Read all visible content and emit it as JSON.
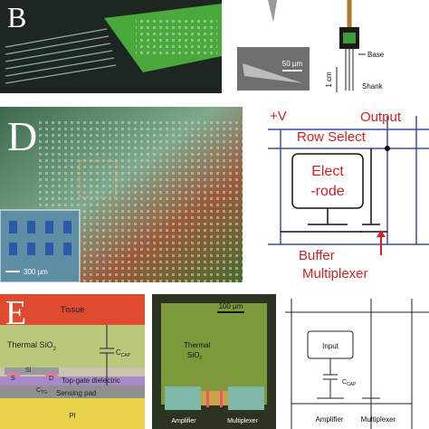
{
  "panel_b": {
    "label": "B"
  },
  "panel_c": {
    "scale_bar": "50 µm",
    "base": "Base",
    "length": "1 cm",
    "shank": "Shank"
  },
  "panel_d": {
    "label": "D",
    "inset_scale_bar": "300 µm"
  },
  "circuit_d": {
    "supply": "+V",
    "output": "Output",
    "row_select": "Row Select",
    "electrode": [
      "Elect",
      "-rode"
    ],
    "buffer": "Buffer",
    "multiplexer": "Multiplexer"
  },
  "panel_e": {
    "label": "E",
    "tissue": "Tissue",
    "oxide": [
      "Thermal SiO",
      "2"
    ],
    "cap": [
      "C",
      "CAP"
    ],
    "si": "Si",
    "source": "S",
    "drain": "D",
    "ctg": [
      "C",
      "TG"
    ],
    "dielectric": "Top-gate dielectric",
    "pad": "Sensing pad",
    "substrate": "PI"
  },
  "micrograph": {
    "scale_bar": "100 µm",
    "oxide": [
      "Thermal",
      "SiO",
      "2"
    ],
    "amplifier": "Amplifier",
    "multiplexer": "Multiplexer"
  },
  "circuit_e": {
    "input": "Input",
    "cap": [
      "C",
      "CAP"
    ],
    "amplifier": "Amplifier",
    "multiplexer": "Multiplexer"
  }
}
